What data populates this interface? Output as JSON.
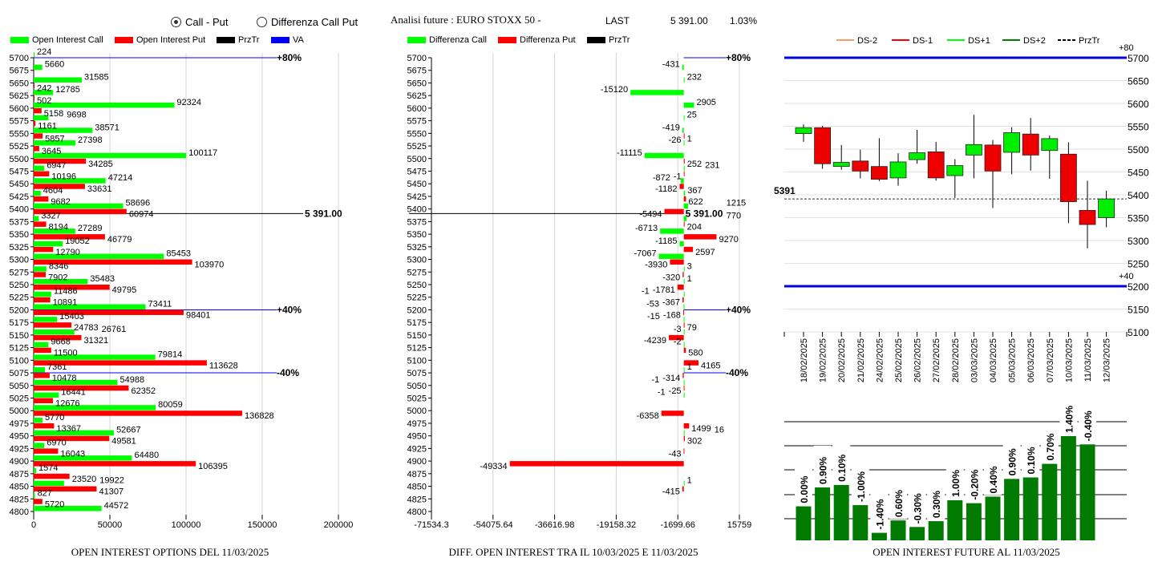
{
  "header": {
    "radio_call_put": "Call - Put",
    "radio_diff": "Differenza Call Put",
    "radio_selected": "call_put",
    "analysis_label": "Analisi future : EURO STOXX 50 -",
    "last_label": "LAST",
    "last_value": "5 391.00",
    "change": "1.03%"
  },
  "legend_left": [
    {
      "label": "Open Interest Call",
      "color": "#00ff00"
    },
    {
      "label": "Open Interest Put",
      "color": "#ff0000"
    },
    {
      "label": "PrzTr",
      "color": "#000000"
    },
    {
      "label": "VA",
      "color": "#0000ff"
    }
  ],
  "legend_mid": [
    {
      "label": "Differenza Call",
      "color": "#00ff00"
    },
    {
      "label": "Differenza Put",
      "color": "#ff0000"
    },
    {
      "label": "PrzTr",
      "color": "#000000"
    }
  ],
  "legend_candle": [
    {
      "label": "DS-2",
      "color": "#ff9966",
      "dash": false
    },
    {
      "label": "DS-1",
      "color": "#ff0000",
      "dash": false
    },
    {
      "label": "DS+1",
      "color": "#00ff00",
      "dash": false
    },
    {
      "label": "DS+2",
      "color": "#008000",
      "dash": false
    },
    {
      "label": "PrzTr",
      "color": "#000000",
      "dash": true
    }
  ],
  "chart_data": [
    {
      "type": "bar",
      "orientation": "horizontal",
      "title": "OPEN INTEREST OPTIONS DEL 11/03/2025",
      "categories": [
        5700,
        5675,
        5650,
        5625,
        5600,
        5575,
        5550,
        5525,
        5500,
        5475,
        5450,
        5425,
        5400,
        5375,
        5350,
        5325,
        5300,
        5275,
        5250,
        5225,
        5200,
        5175,
        5150,
        5125,
        5100,
        5075,
        5050,
        5025,
        5000,
        4975,
        4950,
        4925,
        4900,
        4875,
        4850,
        4825,
        4800
      ],
      "series": [
        {
          "name": "Open Interest Call",
          "color": "#00ff00",
          "values": [
            224,
            5660,
            31585,
            12785,
            92324,
            9698,
            38571,
            27398,
            100117,
            6947,
            47214,
            4604,
            58696,
            3327,
            27289,
            19052,
            85453,
            8346,
            35483,
            11486,
            73411,
            15403,
            26761,
            9668,
            79814,
            7361,
            54988,
            16441,
            80059,
            5770,
            52667,
            6970,
            64480,
            1574,
            19922,
            827,
            44572
          ]
        },
        {
          "name": "Open Interest Put",
          "color": "#ff0000",
          "values": [
            null,
            null,
            242,
            502,
            5158,
            1161,
            5857,
            3645,
            34285,
            10196,
            33631,
            9682,
            60974,
            8194,
            46779,
            12790,
            103970,
            7902,
            49795,
            10891,
            98401,
            24783,
            31321,
            11500,
            113628,
            10478,
            62352,
            12676,
            136828,
            13367,
            49581,
            16043,
            106395,
            23520,
            41307,
            5720,
            null
          ]
        }
      ],
      "xlim": [
        0,
        200000
      ],
      "xticks": [
        "0",
        "50000",
        "100000",
        "150000",
        "200000"
      ],
      "grid": true,
      "reference_lines": [
        {
          "label": "+80%",
          "strike": 5700,
          "color": "#0000ff"
        },
        {
          "label": "+40%",
          "strike": 5200,
          "color": "#0000ff"
        },
        {
          "label": "-40%",
          "strike": 5075,
          "color": "#0000ff"
        },
        {
          "label": "5 391.00",
          "strike": 5391,
          "color": "#000000"
        }
      ]
    },
    {
      "type": "bar",
      "orientation": "horizontal",
      "title": "DIFF. OPEN INTEREST TRA IL 10/03/2025 E 11/03/2025",
      "categories": [
        5700,
        5675,
        5650,
        5625,
        5600,
        5575,
        5550,
        5525,
        5500,
        5475,
        5450,
        5425,
        5400,
        5375,
        5350,
        5325,
        5300,
        5275,
        5250,
        5225,
        5200,
        5175,
        5150,
        5125,
        5100,
        5075,
        5050,
        5025,
        5000,
        4975,
        4950,
        4925,
        4900,
        4875,
        4850,
        4825,
        4800
      ],
      "series": [
        {
          "name": "Differenza Call",
          "color": "#00ff00",
          "values": [
            null,
            -431,
            232,
            -15120,
            2905,
            25,
            -419,
            -26,
            -11115,
            231,
            -872,
            367,
            1215,
            770,
            -6713,
            -1185,
            -7067,
            3,
            1,
            -1,
            -53,
            -15,
            -3,
            -2,
            null,
            1,
            -1,
            -1,
            null,
            null,
            16,
            null,
            null,
            null,
            1,
            null,
            null
          ]
        },
        {
          "name": "Differenza Put",
          "color": "#ff0000",
          "values": [
            null,
            null,
            null,
            null,
            null,
            null,
            1,
            null,
            252,
            -1,
            -1182,
            622,
            -5494,
            204,
            9270,
            2597,
            -3930,
            -320,
            -1781,
            -367,
            -168,
            79,
            -4239,
            580,
            4165,
            -314,
            -25,
            null,
            -6358,
            1499,
            302,
            -43,
            -49334,
            null,
            -415,
            null,
            null
          ]
        }
      ],
      "xlim": [
        -71534.3,
        15759
      ],
      "xticks": [
        "-71534.3",
        "-54075.64",
        "-36616.98",
        "-19158.32",
        "-1699.66",
        "15759"
      ],
      "grid": true,
      "reference_lines": [
        {
          "label": "+80%",
          "strike": 5700,
          "color": "#0000ff"
        },
        {
          "label": "+40%",
          "strike": 5200,
          "color": "#0000ff"
        },
        {
          "label": "-40%",
          "strike": 5075,
          "color": "#0000ff"
        },
        {
          "label": "5 391.00",
          "strike": 5391,
          "color": "#000000"
        }
      ]
    },
    {
      "type": "candlestick",
      "dates": [
        "18/02/2025",
        "19/02/2025",
        "20/02/2025",
        "21/02/2025",
        "24/02/2025",
        "25/02/2025",
        "26/02/2025",
        "27/02/2025",
        "28/02/2025",
        "03/03/2025",
        "04/03/2025",
        "05/03/2025",
        "06/03/2025",
        "07/03/2025",
        "10/03/2025",
        "11/03/2025",
        "12/03/2025"
      ],
      "ohlc": [
        [
          5534,
          5554,
          5516,
          5547
        ],
        [
          5547,
          5551,
          5457,
          5468
        ],
        [
          5462,
          5509,
          5455,
          5471
        ],
        [
          5474,
          5499,
          5436,
          5452
        ],
        [
          5462,
          5524,
          5430,
          5434
        ],
        [
          5437,
          5491,
          5420,
          5472
        ],
        [
          5477,
          5542,
          5468,
          5492
        ],
        [
          5494,
          5516,
          5431,
          5437
        ],
        [
          5442,
          5478,
          5393,
          5464
        ],
        [
          5487,
          5575,
          5436,
          5510
        ],
        [
          5509,
          5520,
          5371,
          5452
        ],
        [
          5493,
          5548,
          5445,
          5536
        ],
        [
          5533,
          5568,
          5453,
          5487
        ],
        [
          5497,
          5530,
          5435,
          5523
        ],
        [
          5489,
          5515,
          5338,
          5385
        ],
        [
          5366,
          5431,
          5283,
          5335
        ],
        [
          5350,
          5409,
          5329,
          5391
        ]
      ],
      "ylim": [
        5100,
        5700
      ],
      "yticks": [
        "5100",
        "5150",
        "5200",
        "5250",
        "5300",
        "5350",
        "5400",
        "5450",
        "5500",
        "5550",
        "5600",
        "5650",
        "5700"
      ],
      "price_line": {
        "value": 5391,
        "label": "5391"
      },
      "levels": [
        {
          "value": 5700,
          "label": "+80"
        },
        {
          "value": 5200,
          "label": "+40"
        }
      ],
      "grid": true,
      "legend_position": "top"
    },
    {
      "type": "bar",
      "title": "OPEN INTEREST FUTURE AL 11/03/2025",
      "labels": [
        "0.00%",
        "0.90%",
        "0.10%",
        "-1.00%",
        "-1.40%",
        "0.60%",
        "-0.30%",
        "0.30%",
        "1.00%",
        "-0.20%",
        "0.40%",
        "0.90%",
        "0.10%",
        "0.70%",
        "1.40%",
        "-0.40%"
      ],
      "values": [
        1.4,
        2.18,
        2.28,
        1.45,
        0.31,
        0.82,
        0.55,
        0.79,
        1.65,
        1.53,
        1.8,
        2.53,
        2.59,
        3.15,
        4.29,
        3.95
      ],
      "color": "#007a00",
      "grid": true
    }
  ]
}
